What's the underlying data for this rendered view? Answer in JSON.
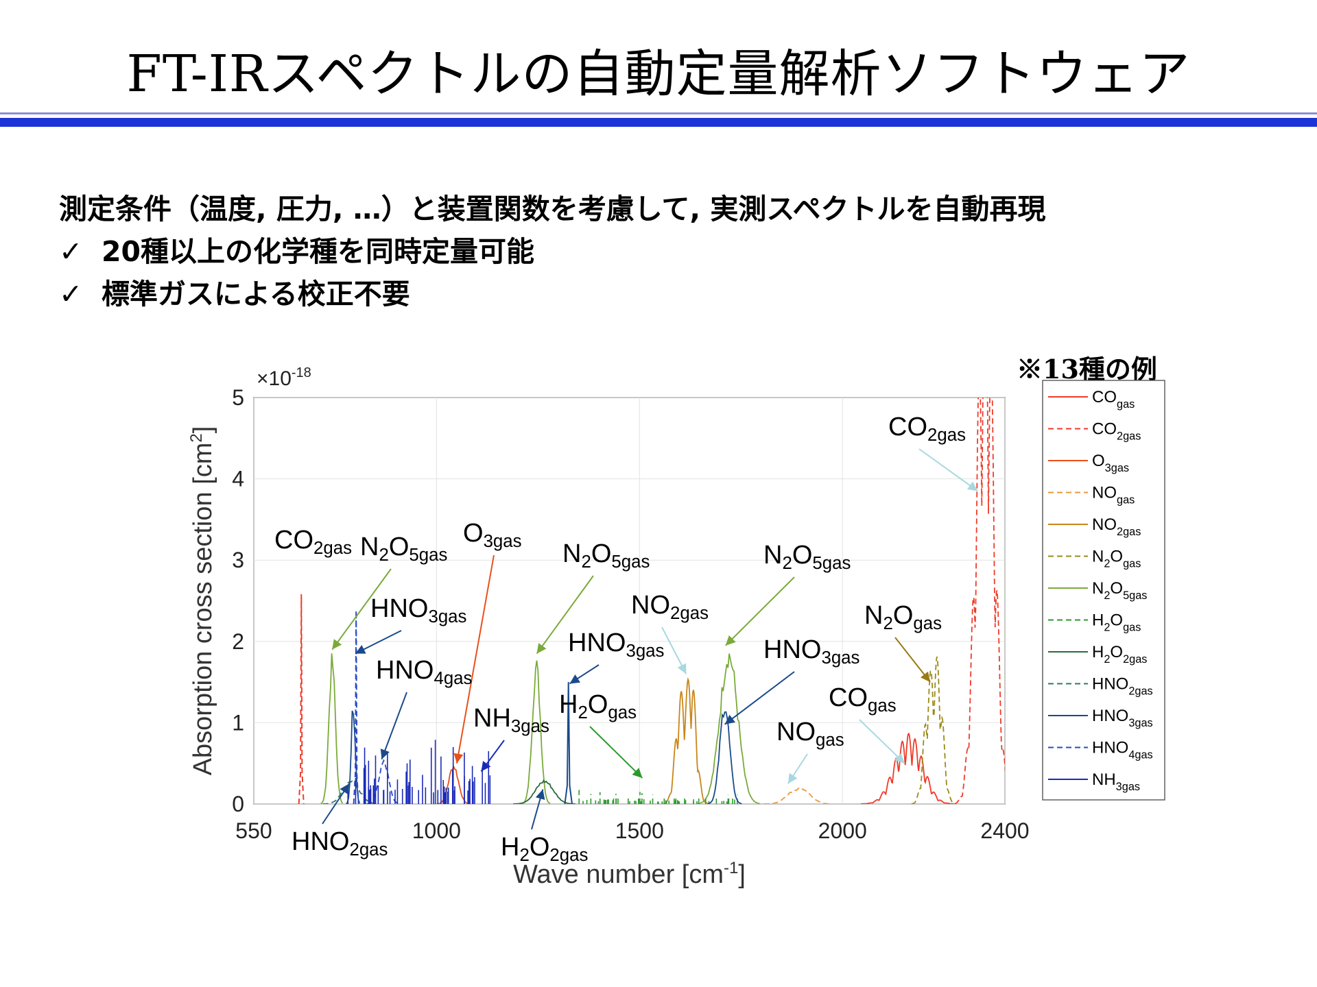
{
  "slide": {
    "title": "FT-IRスペクトルの自動定量解析ソフトウェア",
    "bullets": [
      {
        "mark": "",
        "text": "測定条件（温度, 圧力, …）と装置関数を考慮して, 実測スペクトルを自動再現"
      },
      {
        "mark": "✓",
        "text": "20種以上の化学種を同時定量可能"
      },
      {
        "mark": "✓",
        "text": "標準ガスによる校正不要"
      }
    ],
    "note": "※13種の例"
  },
  "colors": {
    "title_rule_light": "#8c8cd8",
    "title_rule_dark": "#1c34d6",
    "CO": "#f03a28",
    "CO2": "#f03a28",
    "O3": "#e8501a",
    "NO": "#e89a3a",
    "NO2": "#c8861a",
    "N2O": "#9a8a1a",
    "N2O5": "#7aaa3a",
    "H2O": "#2a9a2a",
    "H2O2": "#2a6a3a",
    "HNO2": "#2a7a6a",
    "HNO3": "#1a4a8a",
    "HNO4": "#2a4ac8",
    "NH3": "#1a2ab8",
    "arrow_light": "#a8d8e0",
    "arrow_olive": "#9a7a10"
  },
  "chart_data": {
    "type": "line",
    "xlabel": "Wave number [cm^-1]",
    "ylabel": "Absorption cross section [cm^2]",
    "y_multiplier": "×10^-18",
    "xlim": [
      550,
      2400
    ],
    "ylim": [
      0,
      5
    ],
    "xticks": [
      550,
      1000,
      1500,
      2000,
      2400
    ],
    "yticks": [
      0,
      1,
      2,
      3,
      4,
      5
    ],
    "grid": true,
    "legend_position": "right-outside",
    "legend": [
      {
        "base": "CO",
        "sub": "gas",
        "style": "solid",
        "color_key": "CO"
      },
      {
        "base": "CO",
        "sub": "2gas",
        "style": "dashed",
        "color_key": "CO2"
      },
      {
        "base": "O",
        "sub": "3gas",
        "style": "solid",
        "color_key": "O3"
      },
      {
        "base": "NO",
        "sub": "gas",
        "style": "dashed",
        "color_key": "NO"
      },
      {
        "base": "NO",
        "sub": "2gas",
        "style": "solid",
        "color_key": "NO2"
      },
      {
        "base": "N2O",
        "sub": "gas",
        "style": "dashed",
        "color_key": "N2O"
      },
      {
        "base": "N2O",
        "sub": "5gas",
        "style": "solid",
        "color_key": "N2O5"
      },
      {
        "base": "H2O",
        "sub": "gas",
        "style": "dashed",
        "color_key": "H2O"
      },
      {
        "base": "H2O",
        "sub": "2gas",
        "style": "solid",
        "color_key": "H2O2"
      },
      {
        "base": "HNO",
        "sub": "2gas",
        "style": "dashed",
        "color_key": "HNO2"
      },
      {
        "base": "HNO",
        "sub": "3gas",
        "style": "solid",
        "color_key": "HNO3"
      },
      {
        "base": "HNO",
        "sub": "4gas",
        "style": "dashed",
        "color_key": "HNO4"
      },
      {
        "base": "NH",
        "sub": "3gas",
        "style": "solid",
        "color_key": "NH3"
      }
    ],
    "bands": [
      {
        "species": "CO2",
        "style": "dashed",
        "color_key": "CO2",
        "center": 667,
        "width": 2,
        "peak": 2.58,
        "kind": "spike"
      },
      {
        "species": "CO2",
        "style": "dashed",
        "color_key": "CO2",
        "center": 2340,
        "width": 18,
        "peak": 3.9,
        "kind": "doublet",
        "peak2": 4.35,
        "center2": 2362
      },
      {
        "species": "CO",
        "style": "solid",
        "color_key": "CO",
        "center": 2143,
        "width": 28,
        "peak": 0.45,
        "kind": "doublet",
        "peak2": 0.6,
        "center2": 2178
      },
      {
        "species": "O3",
        "style": "solid",
        "color_key": "O3",
        "center": 1042,
        "width": 12,
        "peak": 0.5,
        "kind": "band"
      },
      {
        "species": "NO",
        "style": "dashed",
        "color_key": "NO",
        "center": 1876,
        "width": 20,
        "peak": 0.12,
        "kind": "doublet",
        "peak2": 0.15,
        "center2": 1906
      },
      {
        "species": "NO2",
        "style": "solid",
        "color_key": "NO2",
        "center": 1600,
        "width": 12,
        "peak": 1.25,
        "kind": "doublet",
        "peak2": 1.55,
        "center2": 1628
      },
      {
        "species": "N2O",
        "style": "dashed",
        "color_key": "N2O",
        "center": 2212,
        "width": 12,
        "peak": 1.3,
        "kind": "doublet",
        "peak2": 1.58,
        "center2": 2236
      },
      {
        "species": "N2O5",
        "style": "solid",
        "color_key": "N2O5",
        "center": 743,
        "width": 8,
        "peak": 1.87,
        "kind": "band"
      },
      {
        "species": "N2O5",
        "style": "solid",
        "color_key": "N2O5",
        "center": 1246,
        "width": 10,
        "peak": 1.82,
        "kind": "band"
      },
      {
        "species": "N2O5",
        "style": "solid",
        "color_key": "N2O5",
        "center": 1720,
        "width": 22,
        "peak": 1.97,
        "kind": "band"
      },
      {
        "species": "H2O",
        "style": "dashed",
        "color_key": "H2O",
        "center": 1550,
        "width": 200,
        "peak": 0.2,
        "kind": "lines"
      },
      {
        "species": "H2O2",
        "style": "solid",
        "color_key": "H2O2",
        "center": 1266,
        "width": 22,
        "peak": 0.3,
        "kind": "band"
      },
      {
        "species": "HNO2",
        "style": "dashed",
        "color_key": "HNO2",
        "center": 790,
        "width": 20,
        "peak": 0.3,
        "kind": "band"
      },
      {
        "species": "HNO3",
        "style": "solid",
        "color_key": "HNO3",
        "center": 795,
        "width": 5,
        "peak": 1.3,
        "kind": "band"
      },
      {
        "species": "HNO3",
        "style": "solid",
        "color_key": "HNO3",
        "center": 1325,
        "width": 3,
        "peak": 1.5,
        "kind": "spike"
      },
      {
        "species": "HNO3",
        "style": "solid",
        "color_key": "HNO3",
        "center": 1710,
        "width": 12,
        "peak": 1.3,
        "kind": "band"
      },
      {
        "species": "HNO4",
        "style": "dashed",
        "color_key": "HNO4",
        "center": 802,
        "width": 2,
        "peak": 2.38,
        "kind": "spike"
      },
      {
        "species": "HNO4",
        "style": "dashed",
        "color_key": "HNO4",
        "center": 870,
        "width": 12,
        "peak": 0.55,
        "kind": "band"
      },
      {
        "species": "NH3",
        "style": "solid",
        "color_key": "NH3",
        "center": 960,
        "width": 180,
        "peak": 0.95,
        "kind": "lines"
      }
    ],
    "annotations": [
      {
        "base": "CO",
        "sub": "2gas",
        "arrow": false,
        "color_key": "CO2"
      },
      {
        "base": "N2O",
        "sub": "5gas",
        "arrow": true,
        "color_key": "N2O5",
        "target": [
          743,
          1.9
        ]
      },
      {
        "base": "O",
        "sub": "3gas",
        "arrow": true,
        "color_key": "O3",
        "target": [
          1050,
          0.5
        ]
      },
      {
        "base": "HNO",
        "sub": "3gas",
        "arrow": true,
        "color_key": "HNO3",
        "target": [
          800,
          1.85
        ]
      },
      {
        "base": "HNO",
        "sub": "4gas",
        "arrow": true,
        "color_key": "HNO3",
        "target": [
          865,
          0.55
        ]
      },
      {
        "base": "NH",
        "sub": "3gas",
        "arrow": true,
        "color_key": "NH3",
        "target": [
          1110,
          0.4
        ]
      },
      {
        "base": "HNO",
        "sub": "2gas",
        "arrow": true,
        "color_key": "HNO3",
        "target": [
          785,
          0.25
        ]
      },
      {
        "base": "N2O",
        "sub": "5gas",
        "arrow": true,
        "color_key": "N2O5",
        "target": [
          1247,
          1.85
        ]
      },
      {
        "base": "HNO",
        "sub": "3gas",
        "arrow": true,
        "color_key": "HNO3",
        "target": [
          1328,
          1.48
        ]
      },
      {
        "base": "H2O",
        "sub": "2gas",
        "arrow": true,
        "color_key": "HNO3",
        "target": [
          1262,
          0.18
        ]
      },
      {
        "base": "H2O",
        "sub": "gas",
        "arrow": true,
        "color_key": "H2O",
        "target": [
          1507,
          0.32
        ]
      },
      {
        "base": "NO",
        "sub": "2gas",
        "arrow": true,
        "color_key": "arrow_light",
        "target": [
          1615,
          1.6
        ]
      },
      {
        "base": "N2O",
        "sub": "5gas",
        "arrow": true,
        "color_key": "N2O5",
        "target": [
          1712,
          1.95
        ]
      },
      {
        "base": "HNO",
        "sub": "3gas",
        "arrow": true,
        "color_key": "HNO3",
        "target": [
          1710,
          0.98
        ]
      },
      {
        "base": "NO",
        "sub": "gas",
        "arrow": true,
        "color_key": "arrow_light",
        "target": [
          1866,
          0.25
        ]
      },
      {
        "base": "CO",
        "sub": "gas",
        "arrow": true,
        "color_key": "arrow_light",
        "target": [
          2153,
          0.5
        ]
      },
      {
        "base": "N2O",
        "sub": "gas",
        "arrow": true,
        "color_key": "arrow_olive",
        "target": [
          2216,
          1.5
        ]
      },
      {
        "base": "CO",
        "sub": "2gas",
        "arrow": true,
        "color_key": "arrow_light",
        "target": [
          2333,
          3.85
        ]
      }
    ]
  }
}
